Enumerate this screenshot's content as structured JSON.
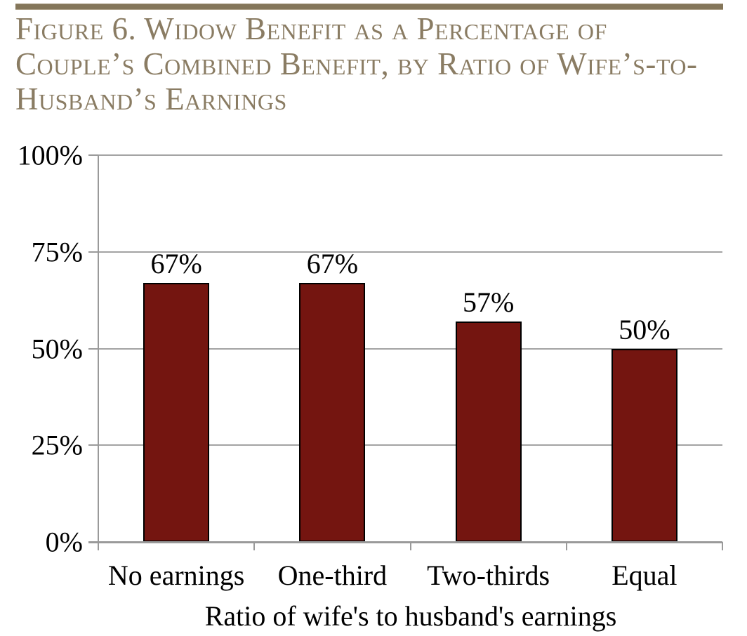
{
  "figure": {
    "title_full": "Figure 6. Widow Benefit as a Percentage of Couple’s Combined Benefit, by Ratio of Wife’s-to-Husband’s Earnings",
    "title_lines": [
      "Figure 6. Widow Benefit as a Percentage of",
      "Couple’s Combined Benefit, by Ratio of Wife’s-to-",
      "Husband’s Earnings"
    ]
  },
  "colors": {
    "title_text": "#8a7c63",
    "top_rule": "#84765a",
    "bar_fill": "#741510",
    "bar_border": "#000000",
    "gridline": "#a3a3a3",
    "axis": "#9a9a9a",
    "label_text": "#000000"
  },
  "chart_data": {
    "type": "bar",
    "categories": [
      "No earnings",
      "One-third",
      "Two-thirds",
      "Equal"
    ],
    "values": [
      67,
      67,
      57,
      50
    ],
    "data_labels": [
      "67%",
      "67%",
      "57%",
      "50%"
    ],
    "title": "Figure 6. Widow Benefit as a Percentage of Couple’s Combined Benefit, by Ratio of Wife’s-to-Husband’s Earnings",
    "xlabel": "Ratio of wife's to husband's earnings",
    "ylabel": "",
    "ylim": [
      0,
      100
    ],
    "yticks": [
      0,
      25,
      50,
      75,
      100
    ],
    "ytick_labels": [
      "0%",
      "25%",
      "50%",
      "75%",
      "100%"
    ],
    "grid": true,
    "legend": "none",
    "bar_color": "#741510"
  }
}
